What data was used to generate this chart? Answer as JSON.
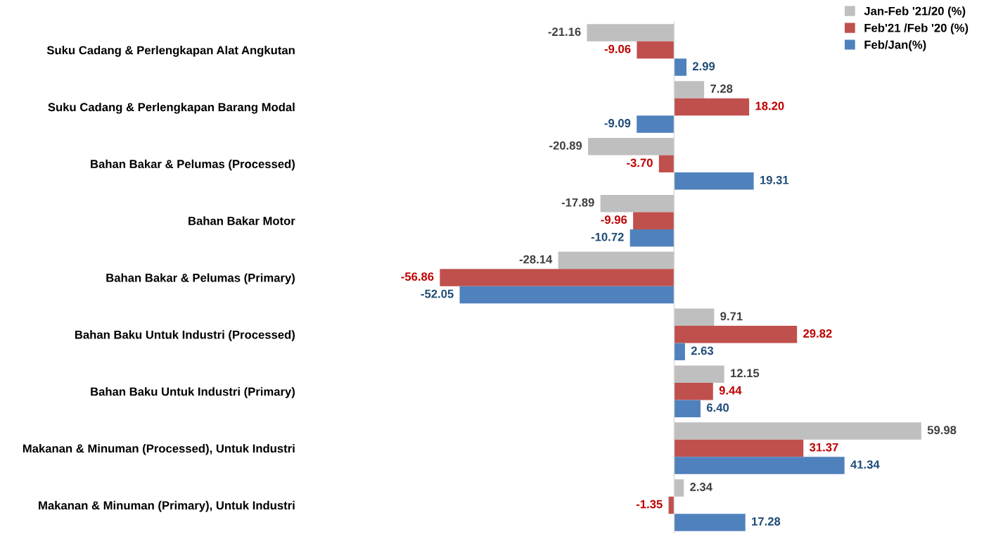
{
  "chart_data": {
    "type": "bar",
    "orientation": "horizontal",
    "legend": "top right",
    "grid": false,
    "categories": [
      "Suku Cadang & Perlengkapan Alat Angkutan",
      "Suku Cadang & Perlengkapan Barang Modal",
      "Bahan Bakar & Pelumas (Processed)",
      "Bahan Bakar Motor",
      "Bahan Bakar & Pelumas (Primary)",
      "Bahan Baku Untuk Industri (Processed)",
      "Bahan Baku Untuk Industri (Primary)",
      "Makanan & Minuman (Processed), Untuk Industri",
      "Makanan & Minuman (Primary), Untuk Industri"
    ],
    "series": [
      {
        "name": "Jan-Feb '21/20 (%)",
        "color": "#bfbfbf",
        "values": [
          -21.16,
          7.28,
          -20.89,
          -17.89,
          -28.14,
          9.71,
          12.15,
          59.98,
          2.34
        ],
        "value_labels": [
          "-21.16",
          "7.28",
          "-20.89",
          "-17.89",
          "-28.14",
          "9.71",
          "12.15",
          "59.98",
          "2.34"
        ]
      },
      {
        "name": "Feb'21 /Feb '20 (%)",
        "color": "#c0504d",
        "values": [
          -9.06,
          18.2,
          -3.7,
          -9.96,
          -56.86,
          29.82,
          9.44,
          31.37,
          -1.35
        ],
        "value_labels": [
          "-9.06",
          "18.20",
          "-3.70",
          "-9.96",
          "-56.86",
          "29.82",
          "9.44",
          "31.37",
          "-1.35"
        ]
      },
      {
        "name": "Feb/Jan(%)",
        "color": "#4f81bd",
        "values": [
          2.99,
          -9.09,
          19.31,
          -10.72,
          -52.05,
          2.63,
          6.4,
          41.34,
          17.28
        ],
        "value_labels": [
          "2.99",
          "-9.09",
          "19.31",
          "-10.72",
          "-52.05",
          "2.63",
          "6.40",
          "41.34",
          "17.28"
        ]
      }
    ]
  }
}
